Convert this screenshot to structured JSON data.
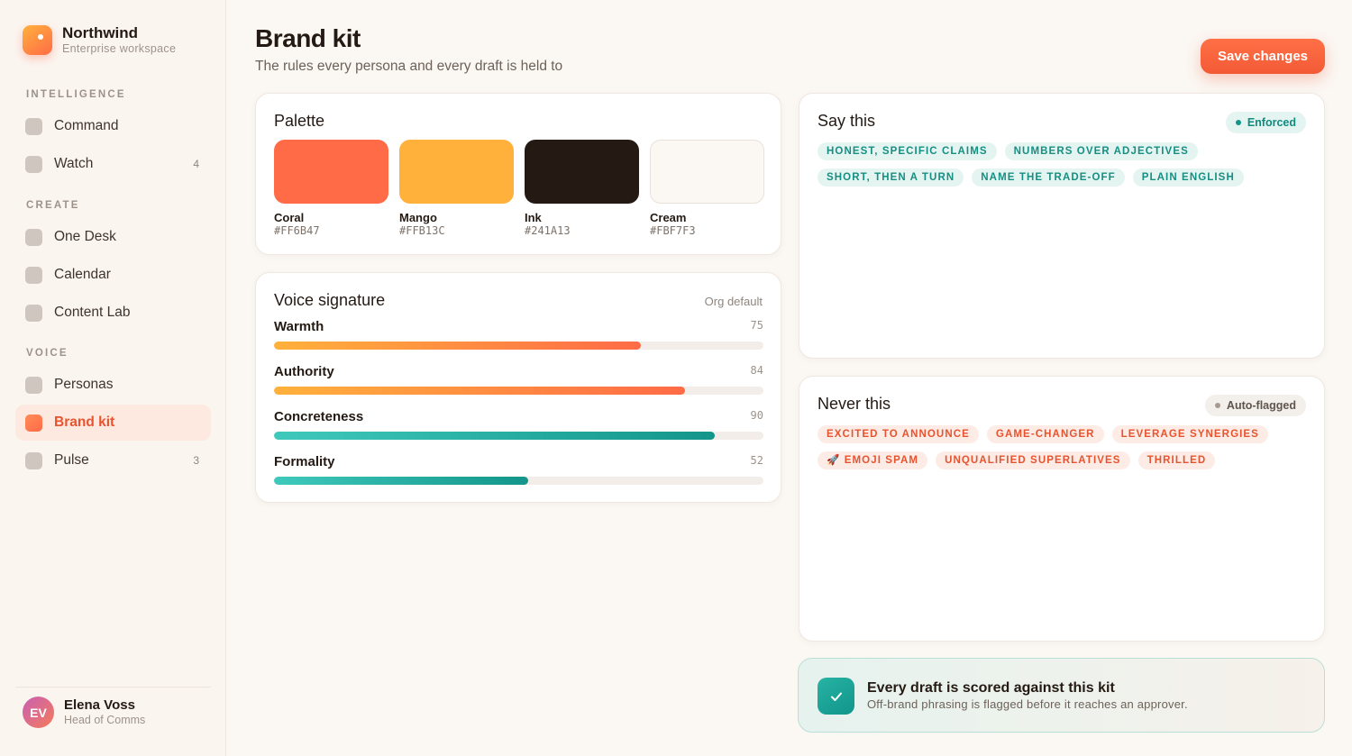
{
  "workspace": {
    "name": "Northwind",
    "subtitle": "Enterprise workspace"
  },
  "nav": {
    "intelligence": {
      "heading": "INTELLIGENCE",
      "items": [
        {
          "label": "Command",
          "count": ""
        },
        {
          "label": "Watch",
          "count": "4"
        }
      ]
    },
    "create": {
      "heading": "CREATE",
      "items": [
        {
          "label": "One Desk",
          "count": ""
        },
        {
          "label": "Calendar",
          "count": ""
        },
        {
          "label": "Content Lab",
          "count": ""
        }
      ]
    },
    "voice": {
      "heading": "VOICE",
      "items": [
        {
          "label": "Personas",
          "count": ""
        },
        {
          "label": "Brand kit",
          "count": "",
          "active": true
        },
        {
          "label": "Pulse",
          "count": "3"
        }
      ]
    }
  },
  "user": {
    "initials": "EV",
    "name": "Elena Voss",
    "role": "Head of Comms"
  },
  "header": {
    "title": "Brand kit",
    "subtitle": "The rules every persona and every draft is held to",
    "save_label": "Save changes"
  },
  "palette": {
    "title": "Palette",
    "swatches": [
      {
        "name": "Coral",
        "hex": "#FF6B47"
      },
      {
        "name": "Mango",
        "hex": "#FFB13C"
      },
      {
        "name": "Ink",
        "hex": "#241A13"
      },
      {
        "name": "Cream",
        "hex": "#FBF7F3"
      }
    ]
  },
  "voice": {
    "title": "Voice signature",
    "meta": "Org default",
    "traits": [
      {
        "label": "Warmth",
        "value": 75,
        "tone": "warm"
      },
      {
        "label": "Authority",
        "value": 84,
        "tone": "warm"
      },
      {
        "label": "Concreteness",
        "value": 90,
        "tone": "teal"
      },
      {
        "label": "Formality",
        "value": 52,
        "tone": "teal"
      }
    ]
  },
  "say_this": {
    "title": "Say this",
    "status": "Enforced",
    "chips": [
      "HONEST, SPECIFIC CLAIMS",
      "NUMBERS OVER ADJECTIVES",
      "SHORT, THEN A TURN",
      "NAME THE TRADE-OFF",
      "PLAIN ENGLISH"
    ]
  },
  "never_this": {
    "title": "Never this",
    "status": "Auto-flagged",
    "chips": [
      "EXCITED TO ANNOUNCE",
      "GAME-CHANGER",
      "LEVERAGE SYNERGIES",
      "🚀 EMOJI SPAM",
      "UNQUALIFIED SUPERLATIVES",
      "THRILLED"
    ]
  },
  "banner": {
    "title": "Every draft is scored against this kit",
    "subtitle": "Off-brand phrasing is flagged before it reaches an approver."
  },
  "colors": {
    "accent": "#FF6B47",
    "teal": "#13958A"
  }
}
